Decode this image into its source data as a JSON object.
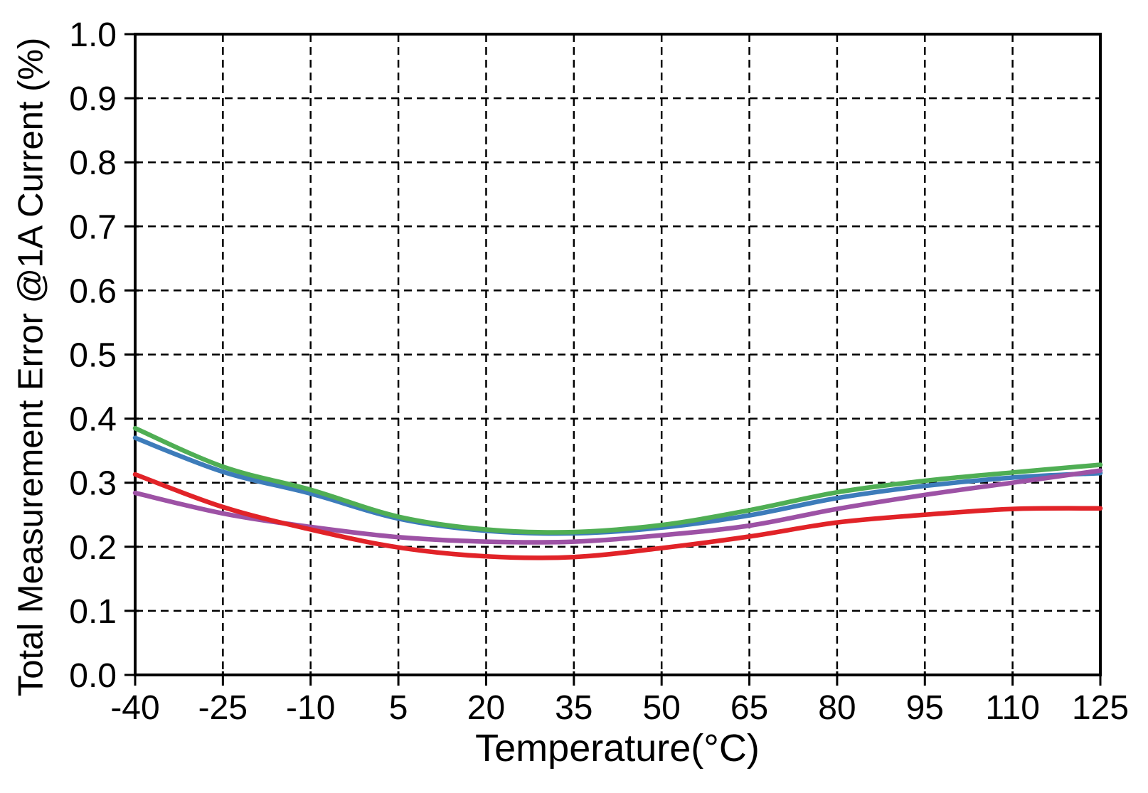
{
  "figure": {
    "background": "#ffffff",
    "text_color": "#000000",
    "axis_color": "#000000",
    "grid_color": "#000000"
  },
  "chart_data": {
    "type": "line",
    "title": "",
    "xlabel": "Temperature(°C)",
    "ylabel": "Total Measurement Error @1A Current (%)",
    "xlim": [
      -40,
      125
    ],
    "ylim": [
      0.0,
      1.0
    ],
    "grid": "dashed both axes, solid box spines, no legend",
    "legend": "none",
    "x": [
      -40,
      -25,
      -10,
      5,
      20,
      35,
      50,
      65,
      80,
      95,
      110,
      125
    ],
    "x_tick_labels": [
      "-40",
      "-25",
      "-10",
      "5",
      "20",
      "35",
      "50",
      "65",
      "80",
      "95",
      "110",
      "125"
    ],
    "y_ticks": [
      0.0,
      0.1,
      0.2,
      0.3,
      0.4,
      0.5,
      0.6,
      0.7,
      0.8,
      0.9,
      1.0
    ],
    "y_tick_labels": [
      "0.0",
      "0.1",
      "0.2",
      "0.3",
      "0.4",
      "0.5",
      "0.6",
      "0.7",
      "0.8",
      "0.9",
      "1.0"
    ],
    "series": [
      {
        "name": "blue",
        "color": "#3d7cba",
        "values": [
          0.37,
          0.317,
          0.283,
          0.244,
          0.225,
          0.221,
          0.23,
          0.249,
          0.276,
          0.295,
          0.308,
          0.315
        ]
      },
      {
        "name": "green",
        "color": "#4fae54",
        "values": [
          0.385,
          0.325,
          0.289,
          0.247,
          0.227,
          0.223,
          0.234,
          0.257,
          0.285,
          0.303,
          0.316,
          0.328
        ]
      },
      {
        "name": "purple",
        "color": "#9d52a5",
        "values": [
          0.284,
          0.252,
          0.231,
          0.215,
          0.208,
          0.208,
          0.218,
          0.233,
          0.259,
          0.281,
          0.3,
          0.319
        ]
      },
      {
        "name": "red",
        "color": "#e12328",
        "values": [
          0.313,
          0.262,
          0.227,
          0.199,
          0.185,
          0.184,
          0.198,
          0.216,
          0.238,
          0.25,
          0.259,
          0.26
        ]
      }
    ]
  }
}
